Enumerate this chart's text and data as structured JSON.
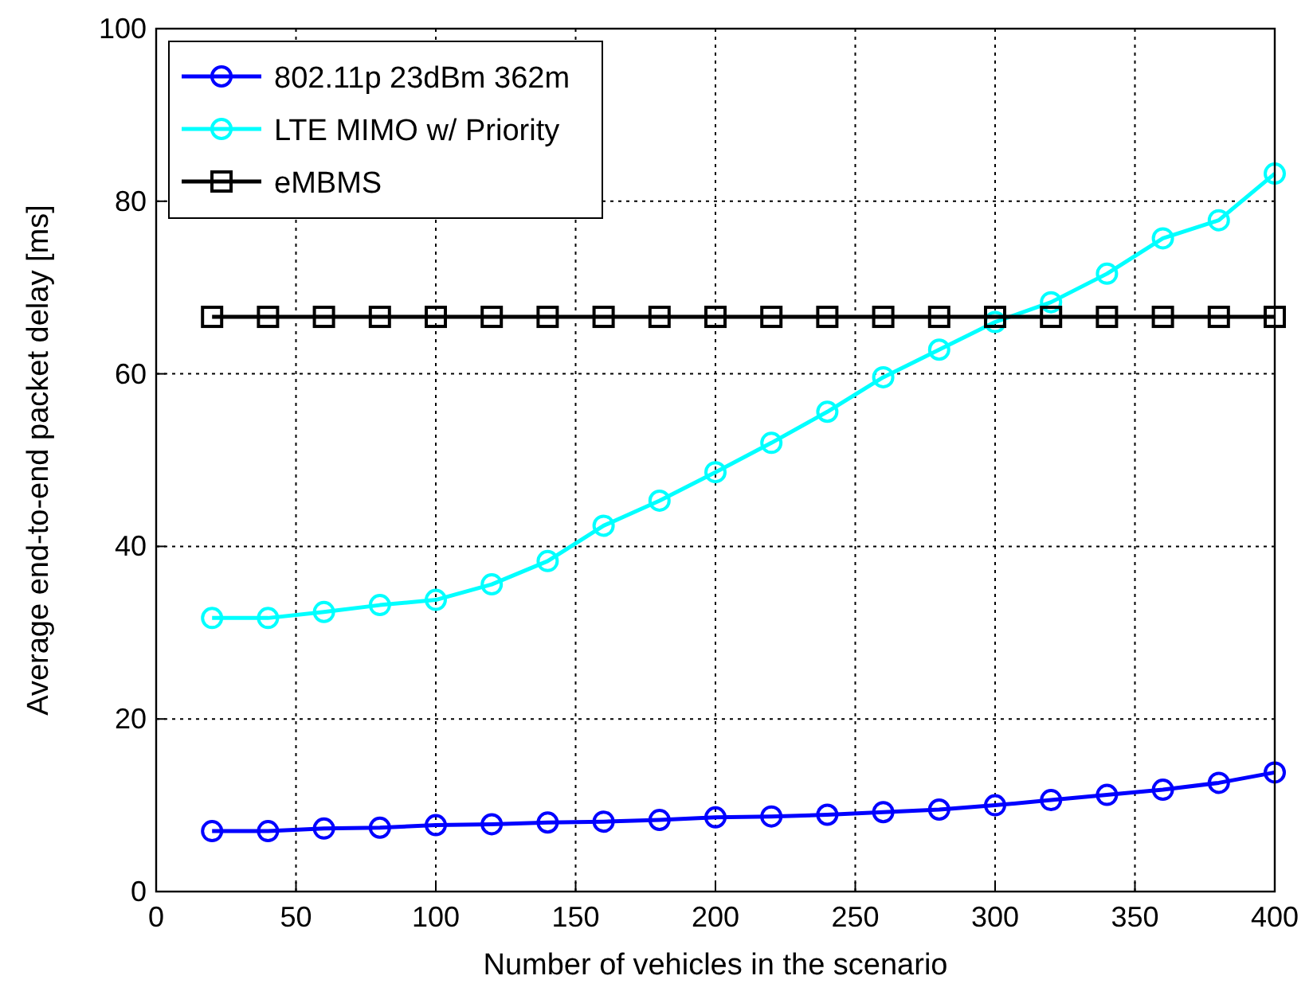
{
  "chart_data": {
    "type": "line",
    "xlabel": "Number of vehicles in the scenario",
    "ylabel": "Average end-to-end packet delay [ms]",
    "x": [
      20,
      40,
      60,
      80,
      100,
      120,
      140,
      160,
      180,
      200,
      220,
      240,
      260,
      280,
      300,
      320,
      340,
      360,
      380,
      400
    ],
    "xlim": [
      0,
      400
    ],
    "xticks": [
      0,
      50,
      100,
      150,
      200,
      250,
      300,
      350,
      400
    ],
    "ylim": [
      0,
      100
    ],
    "yticks": [
      0,
      20,
      40,
      60,
      80,
      100
    ],
    "grid": true,
    "legend": "top left",
    "line_style": "solid",
    "series": [
      {
        "name": "802.11p 23dBm 362m",
        "color": "#0000ff",
        "marker": "circle",
        "values": [
          7,
          7,
          7.3,
          7.4,
          7.7,
          7.8,
          8,
          8.1,
          8.3,
          8.6,
          8.7,
          8.9,
          9.2,
          9.5,
          10,
          10.6,
          11.2,
          11.8,
          12.6,
          13.8
        ]
      },
      {
        "name": "LTE MIMO w/ Priority",
        "color": "#00ffff",
        "marker": "circle",
        "values": [
          31.7,
          31.7,
          32.4,
          33.2,
          33.8,
          35.6,
          38.3,
          42.4,
          45.3,
          48.6,
          52,
          55.6,
          59.6,
          62.8,
          66,
          68.3,
          71.6,
          75.7,
          77.8,
          83.2
        ]
      },
      {
        "name": "eMBMS",
        "color": "#000000",
        "marker": "square",
        "values": [
          66.6,
          66.6,
          66.6,
          66.6,
          66.6,
          66.6,
          66.6,
          66.6,
          66.6,
          66.6,
          66.6,
          66.6,
          66.6,
          66.6,
          66.6,
          66.6,
          66.6,
          66.6,
          66.6,
          66.6
        ]
      }
    ]
  }
}
